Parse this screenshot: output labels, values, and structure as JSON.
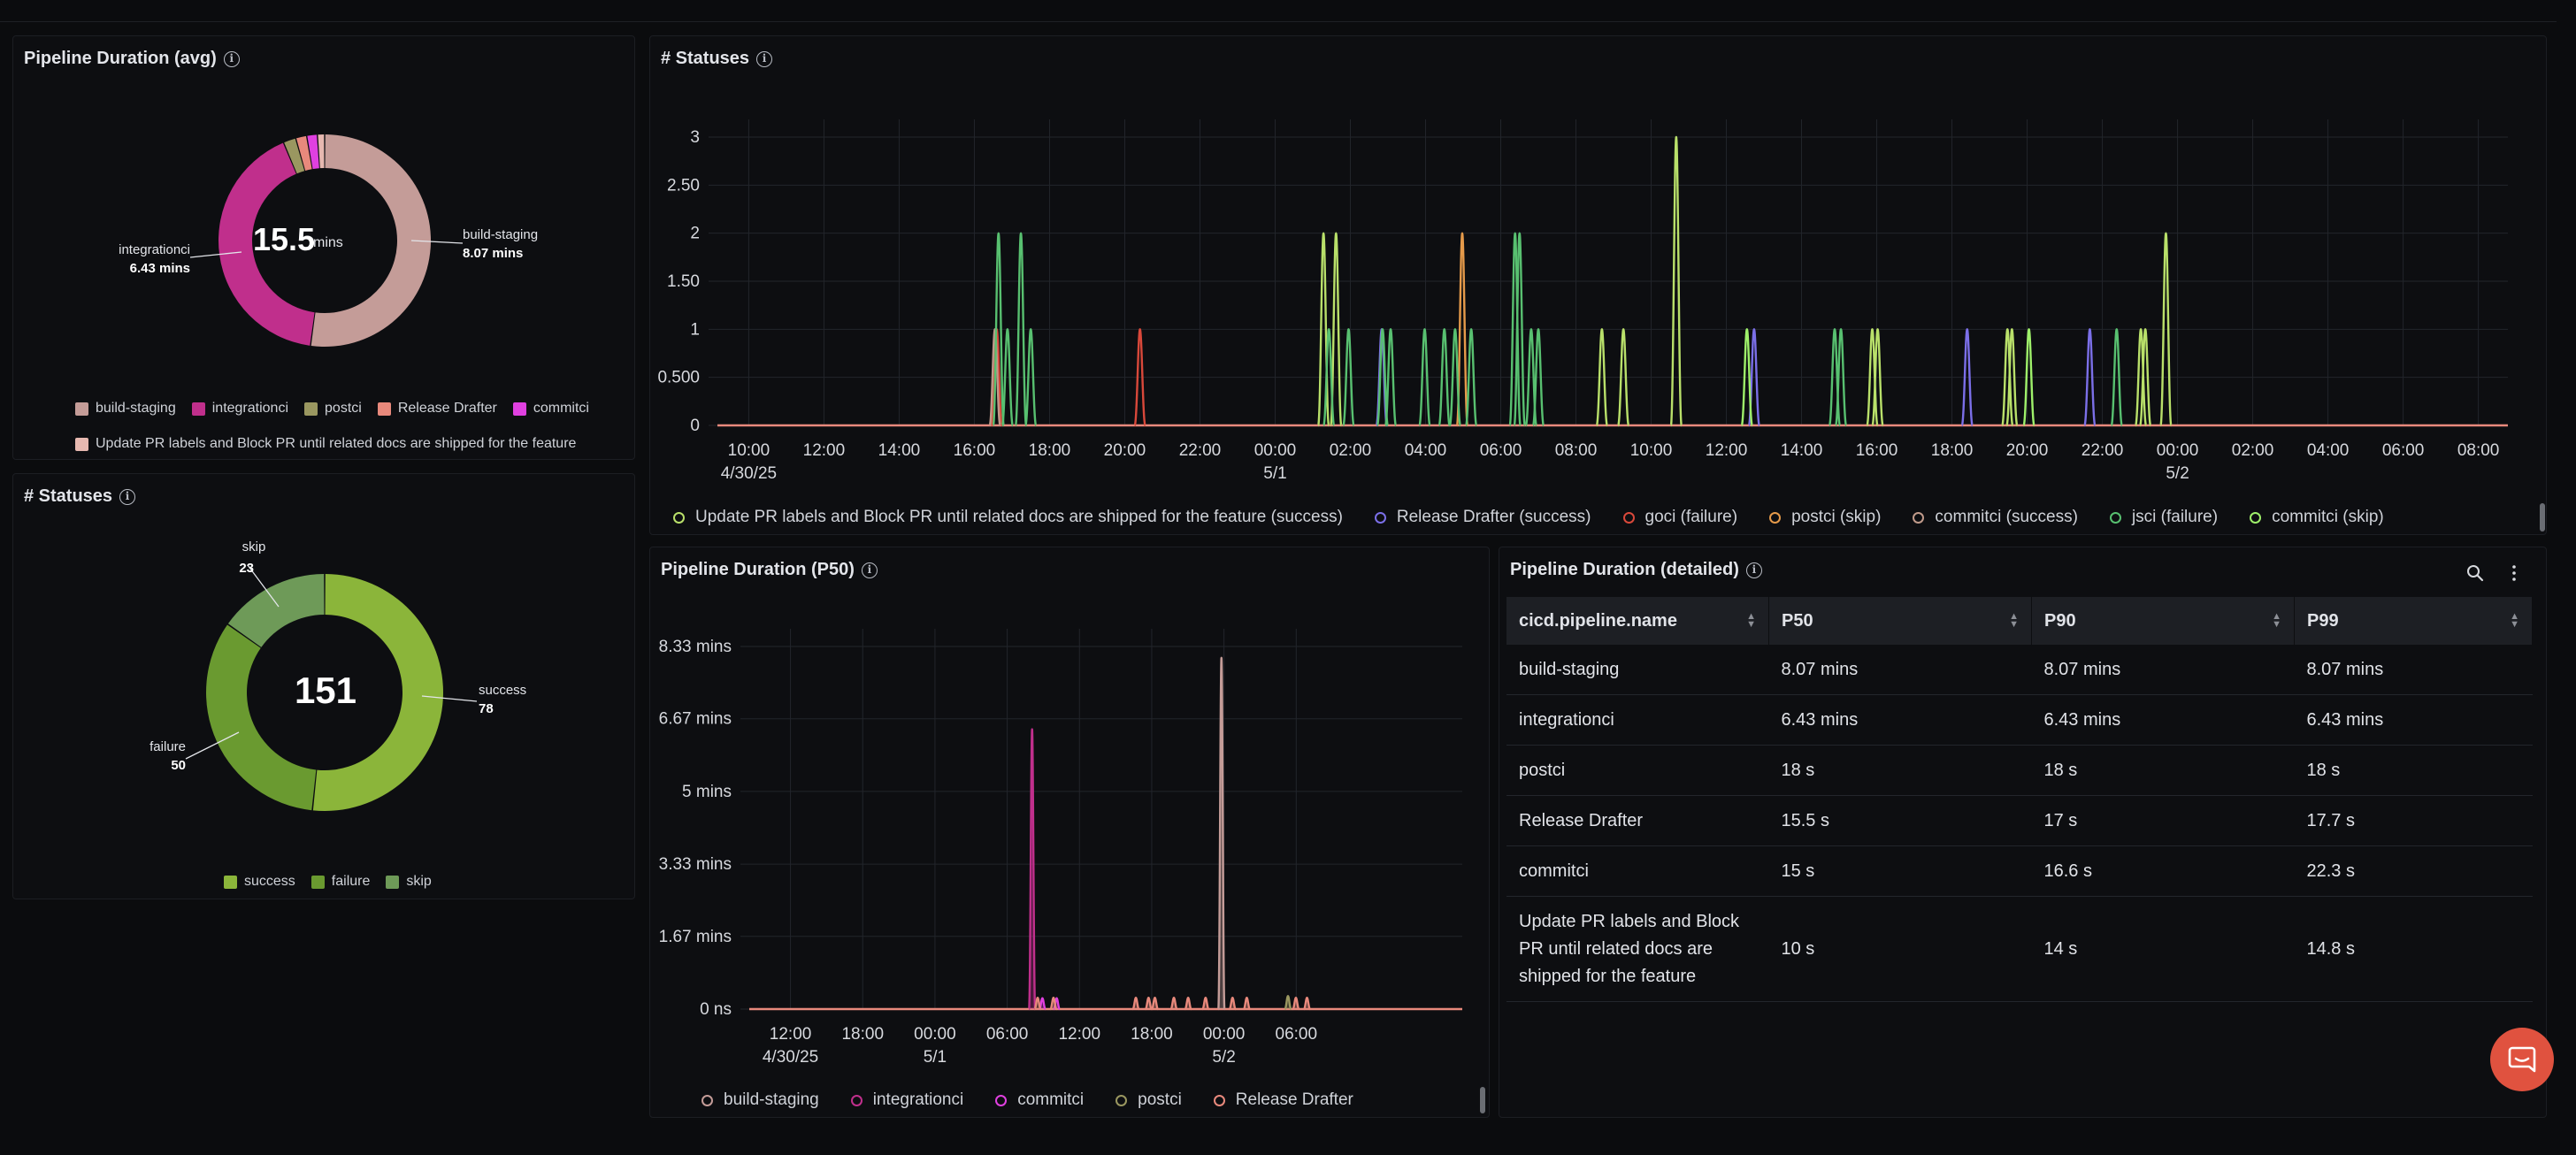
{
  "colors": {
    "build_staging": "#c49c98",
    "integrationci": "#c02f8c",
    "postci": "#9a9760",
    "release_drafter": "#e8897c",
    "commitci": "#e040e0",
    "update_pr": "#e6b8b0",
    "success": "#8bb53a",
    "failure": "#6a9a30",
    "skip": "#6e9a58"
  },
  "duration_avg": {
    "title": "Pipeline Duration (avg)",
    "center_value": "15.5",
    "center_unit": "mins",
    "callout_right_name": "build-staging",
    "callout_right_value": "8.07 mins",
    "callout_left_name": "integrationci",
    "callout_left_value": "6.43 mins",
    "legend": [
      "build-staging",
      "integrationci",
      "postci",
      "Release Drafter",
      "commitci",
      "Update PR labels and Block PR until related docs are shipped for the feature"
    ]
  },
  "statuses_donut": {
    "title": "# Statuses",
    "total": "151",
    "callout_success_name": "success",
    "callout_success_value": "78",
    "callout_failure_name": "failure",
    "callout_failure_value": "50",
    "callout_skip_name": "skip",
    "callout_skip_value": "23",
    "legend": [
      "success",
      "failure",
      "skip"
    ]
  },
  "statuses_ts": {
    "title": "# Statuses",
    "legend": [
      "Update PR labels and Block PR until related docs are shipped for the feature (success)",
      "Release Drafter (success)",
      "goci (failure)",
      "postci (skip)",
      "commitci (success)",
      "jsci (failure)",
      "commitci (skip)"
    ],
    "legend_colors": [
      "#b9e06a",
      "#7b6fe8",
      "#d9483a",
      "#e59a4a",
      "#c09a8a",
      "#58c070",
      "#9ef06a"
    ]
  },
  "p50": {
    "title": "Pipeline Duration (P50)",
    "legend": [
      "build-staging",
      "integrationci",
      "commitci",
      "postci",
      "Release Drafter"
    ],
    "legend_colors": [
      "#c49c98",
      "#c02f8c",
      "#e040e0",
      "#9a9760",
      "#e8897c"
    ]
  },
  "detail": {
    "title": "Pipeline Duration (detailed)",
    "columns": [
      "cicd.pipeline.name",
      "P50",
      "P90",
      "P99"
    ],
    "rows": [
      [
        "build-staging",
        "8.07 mins",
        "8.07 mins",
        "8.07 mins"
      ],
      [
        "integrationci",
        "6.43 mins",
        "6.43 mins",
        "6.43 mins"
      ],
      [
        "postci",
        "18 s",
        "18 s",
        "18 s"
      ],
      [
        "Release Drafter",
        "15.5 s",
        "17 s",
        "17.7 s"
      ],
      [
        "commitci",
        "15 s",
        "16.6 s",
        "22.3 s"
      ],
      [
        "Update PR labels and Block PR until related docs are shipped for the feature",
        "10 s",
        "14 s",
        "14.8 s"
      ]
    ]
  },
  "chart_data": [
    {
      "type": "pie",
      "title": "Pipeline Duration (avg)",
      "categories": [
        "build-staging",
        "integrationci",
        "postci",
        "Release Drafter",
        "commitci",
        "Update PR labels and Block PR until related docs are shipped for the feature"
      ],
      "values": [
        8.07,
        6.43,
        0.3,
        0.26,
        0.25,
        0.17
      ],
      "unit": "mins",
      "center_label": "15.5 mins",
      "legend": "bottom"
    },
    {
      "type": "pie",
      "title": "# Statuses",
      "categories": [
        "success",
        "failure",
        "skip"
      ],
      "values": [
        78,
        50,
        23
      ],
      "center_label": "151",
      "legend": "bottom"
    },
    {
      "type": "line",
      "title": "# Statuses",
      "x_ticks": [
        "10:00",
        "12:00",
        "14:00",
        "16:00",
        "18:00",
        "20:00",
        "22:00",
        "00:00",
        "02:00",
        "04:00",
        "06:00",
        "08:00",
        "10:00",
        "12:00",
        "14:00",
        "16:00",
        "18:00",
        "20:00",
        "22:00",
        "00:00",
        "02:00",
        "04:00",
        "06:00",
        "08:00"
      ],
      "x_date_labels": [
        "4/30/25",
        "5/1",
        "5/2"
      ],
      "y_ticks": [
        "0",
        "0.500",
        "1",
        "1.50",
        "2",
        "2.50",
        "3"
      ],
      "ylim": [
        0,
        3
      ],
      "grid": true,
      "legend": "bottom",
      "series": [
        {
          "name": "Update PR labels and Block PR until related docs are shipped for the feature (success)",
          "points": [
            [
              33.85,
              2
            ],
            [
              34.55,
              2
            ],
            [
              49.4,
              1
            ],
            [
              50.6,
              1
            ],
            [
              53.55,
              3
            ],
            [
              64.5,
              1
            ],
            [
              64.8,
              1
            ],
            [
              72.05,
              1
            ],
            [
              72.3,
              1
            ],
            [
              79.5,
              1
            ],
            [
              79.75,
              1
            ],
            [
              80.9,
              2
            ]
          ]
        },
        {
          "name": "Release Drafter (success)",
          "points": [
            [
              37.1,
              1
            ],
            [
              57.9,
              1
            ],
            [
              69.8,
              1
            ],
            [
              76.65,
              1
            ]
          ]
        },
        {
          "name": "goci (failure)",
          "points": [
            [
              15.6,
              1
            ],
            [
              23.6,
              1
            ]
          ]
        },
        {
          "name": "postci (skip)",
          "points": [
            [
              41.6,
              2
            ]
          ]
        },
        {
          "name": "commitci (success)",
          "points": [
            [
              15.5,
              1
            ]
          ]
        },
        {
          "name": "jsci (failure)",
          "points": [
            [
              15.7,
              2
            ],
            [
              16.2,
              1
            ],
            [
              16.95,
              2
            ],
            [
              17.5,
              1
            ],
            [
              34.15,
              1
            ],
            [
              35.25,
              1
            ],
            [
              37.15,
              1
            ],
            [
              37.6,
              1
            ],
            [
              39.5,
              1
            ],
            [
              40.6,
              1
            ],
            [
              41.2,
              1
            ],
            [
              42.1,
              1
            ],
            [
              44.55,
              2
            ],
            [
              44.8,
              2
            ],
            [
              45.45,
              1
            ],
            [
              45.85,
              1
            ],
            [
              62.4,
              1
            ],
            [
              62.75,
              1
            ],
            [
              78.15,
              1
            ]
          ]
        },
        {
          "name": "commitci (skip)",
          "points": [
            [
              73.25,
              1
            ],
            [
              57.5,
              1
            ]
          ]
        }
      ]
    },
    {
      "type": "line",
      "title": "Pipeline Duration (P50)",
      "x_ticks": [
        "12:00",
        "18:00",
        "00:00",
        "06:00",
        "12:00",
        "18:00",
        "00:00",
        "06:00"
      ],
      "x_date_labels": [
        "4/30/25",
        "5/1",
        "5/2"
      ],
      "y_ticks": [
        "0 ns",
        "1.67 mins",
        "3.33 mins",
        "5 mins",
        "6.67 mins",
        "8.33 mins"
      ],
      "ylim": [
        0,
        8.33
      ],
      "grid": true,
      "legend": "bottom",
      "series": [
        {
          "name": "build-staging",
          "points": [
            [
              29.8,
              8.07
            ]
          ]
        },
        {
          "name": "integrationci",
          "points": [
            [
              17.85,
              6.43
            ]
          ]
        },
        {
          "name": "commitci",
          "points": [
            [
              18.5,
              0.25
            ],
            [
              19.4,
              0.25
            ]
          ]
        },
        {
          "name": "postci",
          "points": [
            [
              34.0,
              0.3
            ]
          ]
        },
        {
          "name": "Release Drafter",
          "points": [
            [
              18.2,
              0.26
            ],
            [
              19.2,
              0.26
            ],
            [
              24.4,
              0.26
            ],
            [
              25.2,
              0.26
            ],
            [
              25.6,
              0.26
            ],
            [
              26.8,
              0.26
            ],
            [
              27.7,
              0.26
            ],
            [
              28.8,
              0.26
            ],
            [
              30.5,
              0.26
            ],
            [
              31.4,
              0.26
            ],
            [
              34.5,
              0.26
            ],
            [
              35.2,
              0.26
            ]
          ]
        }
      ]
    }
  ]
}
